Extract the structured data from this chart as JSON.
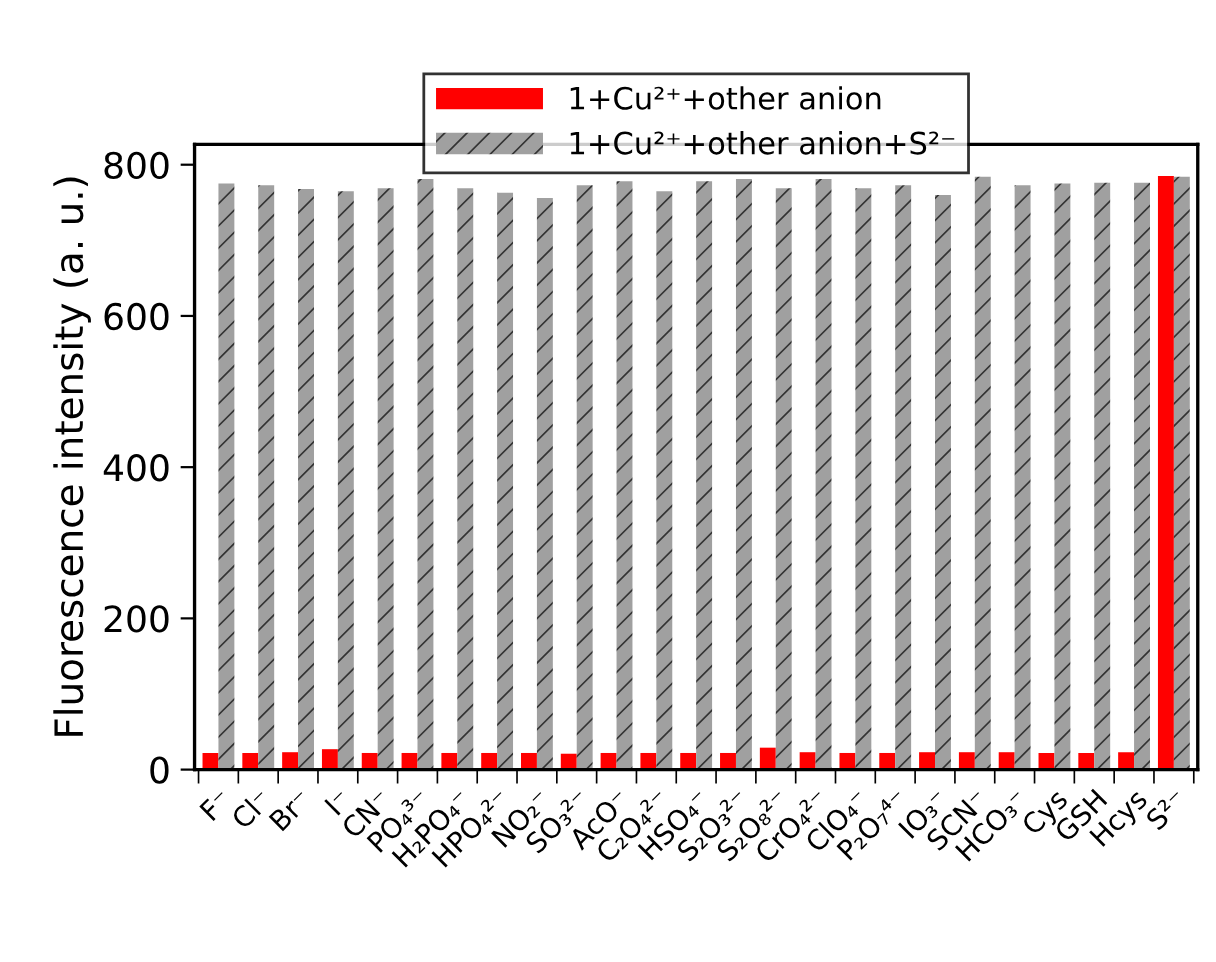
{
  "chart_data": {
    "type": "bar",
    "ylabel": "Fluorescence intensity (a. u.)",
    "categories": [
      "F⁻",
      "Cl⁻",
      "Br⁻",
      "I⁻",
      "CN⁻",
      "PO₄³⁻",
      "H₂PO₄⁻",
      "HPO₄²⁻",
      "NO₂⁻",
      "SO₃²⁻",
      "AcO⁻",
      "C₂O₄²⁻",
      "HSO₄⁻",
      "S₂O₃²⁻",
      "S₂O₈²⁻",
      "CrO₄²⁻",
      "ClO₄⁻",
      "P₂O₇⁴⁻",
      "IO₃⁻",
      "SCN⁻",
      "HCO₃⁻",
      "Cys",
      "GSH",
      "Hcys",
      "S²⁻"
    ],
    "series": [
      {
        "name": "1+Cu²⁺+other anion",
        "color": "#ff0000",
        "values": [
          22,
          22,
          23,
          27,
          22,
          22,
          22,
          22,
          22,
          21,
          22,
          22,
          22,
          22,
          29,
          23,
          22,
          22,
          23,
          23,
          23,
          22,
          22,
          23,
          785
        ]
      },
      {
        "name": "1+Cu²⁺+other anion+S²⁻",
        "color": "#a0a0a0",
        "values": [
          775,
          773,
          768,
          765,
          769,
          781,
          769,
          763,
          756,
          773,
          778,
          765,
          778,
          781,
          769,
          781,
          769,
          773,
          760,
          784,
          773,
          775,
          776,
          776,
          784
        ]
      }
    ],
    "ylim": [
      0,
      827
    ],
    "yticks": [
      0,
      200,
      400,
      600,
      800
    ],
    "legend": "top",
    "grid": false
  }
}
